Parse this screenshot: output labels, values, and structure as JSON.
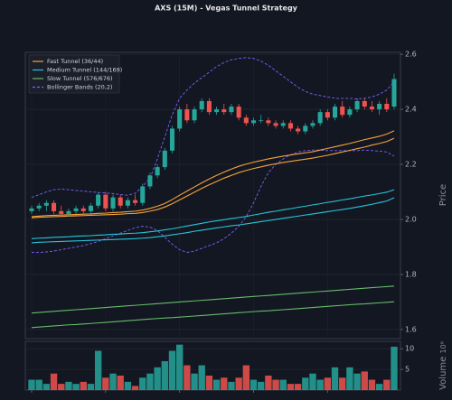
{
  "chart_data": {
    "type": "candlestick",
    "title": "AXS (15M) - Vegas Tunnel Strategy",
    "y_label": "Price",
    "ylim": [
      1.567,
      2.607
    ],
    "yticks": [
      {
        "value": 1.6,
        "label": "1.6"
      },
      {
        "value": 1.8,
        "label": "1.8"
      },
      {
        "value": 2.0,
        "label": "2.0"
      },
      {
        "value": 2.2,
        "label": "2.2"
      },
      {
        "value": 2.4,
        "label": "2.4"
      },
      {
        "value": 2.6,
        "label": "2.6"
      }
    ],
    "grid": true,
    "legend": "upper left",
    "up_color": "#26a69a",
    "down_color": "#ef5350",
    "open": [
      2.03,
      2.04,
      2.05,
      2.06,
      2.03,
      2.02,
      2.03,
      2.04,
      2.03,
      2.05,
      2.09,
      2.04,
      2.08,
      2.05,
      2.07,
      2.06,
      2.12,
      2.16,
      2.19,
      2.25,
      2.33,
      2.4,
      2.36,
      2.4,
      2.43,
      2.39,
      2.4,
      2.39,
      2.41,
      2.37,
      2.35,
      2.36,
      2.36,
      2.35,
      2.34,
      2.35,
      2.33,
      2.32,
      2.34,
      2.35,
      2.39,
      2.37,
      2.41,
      2.38,
      2.4,
      2.43,
      2.41,
      2.4,
      2.42,
      2.41
    ],
    "high": [
      2.05,
      2.06,
      2.07,
      2.07,
      2.05,
      2.04,
      2.05,
      2.05,
      2.06,
      2.1,
      2.1,
      2.09,
      2.09,
      2.08,
      2.09,
      2.13,
      2.17,
      2.2,
      2.26,
      2.34,
      2.41,
      2.42,
      2.41,
      2.44,
      2.44,
      2.41,
      2.42,
      2.42,
      2.42,
      2.38,
      2.37,
      2.38,
      2.37,
      2.36,
      2.36,
      2.36,
      2.34,
      2.35,
      2.36,
      2.4,
      2.4,
      2.42,
      2.43,
      2.41,
      2.44,
      2.44,
      2.43,
      2.43,
      2.44,
      2.53
    ],
    "low": [
      2.02,
      2.03,
      2.03,
      2.02,
      2.01,
      2.01,
      2.02,
      2.02,
      2.02,
      2.04,
      2.03,
      2.03,
      2.04,
      2.04,
      2.05,
      2.05,
      2.11,
      2.15,
      2.18,
      2.24,
      2.32,
      2.35,
      2.35,
      2.39,
      2.38,
      2.38,
      2.38,
      2.38,
      2.36,
      2.34,
      2.34,
      2.35,
      2.34,
      2.33,
      2.33,
      2.32,
      2.31,
      2.31,
      2.33,
      2.34,
      2.36,
      2.36,
      2.37,
      2.37,
      2.39,
      2.4,
      2.39,
      2.38,
      2.39,
      2.4
    ],
    "close": [
      2.04,
      2.05,
      2.06,
      2.03,
      2.02,
      2.03,
      2.04,
      2.03,
      2.05,
      2.09,
      2.04,
      2.08,
      2.05,
      2.07,
      2.06,
      2.12,
      2.16,
      2.19,
      2.25,
      2.33,
      2.4,
      2.36,
      2.4,
      2.43,
      2.39,
      2.4,
      2.39,
      2.41,
      2.37,
      2.35,
      2.36,
      2.36,
      2.35,
      2.34,
      2.35,
      2.33,
      2.32,
      2.34,
      2.35,
      2.39,
      2.37,
      2.41,
      2.38,
      2.4,
      2.43,
      2.41,
      2.4,
      2.42,
      2.4,
      2.51
    ],
    "tunnels": [
      {
        "name": "Fast Tunnel (36/44)",
        "color": "#f5a33b",
        "upper": [
          2.01,
          2.012,
          2.014,
          2.015,
          2.016,
          2.017,
          2.018,
          2.019,
          2.02,
          2.022,
          2.023,
          2.025,
          2.026,
          2.028,
          2.03,
          2.034,
          2.04,
          2.048,
          2.058,
          2.072,
          2.088,
          2.103,
          2.118,
          2.133,
          2.147,
          2.16,
          2.172,
          2.183,
          2.193,
          2.201,
          2.208,
          2.214,
          2.22,
          2.225,
          2.23,
          2.234,
          2.238,
          2.242,
          2.246,
          2.252,
          2.258,
          2.264,
          2.27,
          2.276,
          2.283,
          2.29,
          2.296,
          2.302,
          2.31,
          2.322
        ],
        "lower": [
          2.006,
          2.008,
          2.009,
          2.01,
          2.011,
          2.012,
          2.013,
          2.014,
          2.015,
          2.016,
          2.017,
          2.018,
          2.019,
          2.021,
          2.022,
          2.025,
          2.03,
          2.036,
          2.045,
          2.057,
          2.071,
          2.085,
          2.099,
          2.113,
          2.126,
          2.138,
          2.15,
          2.16,
          2.17,
          2.178,
          2.185,
          2.191,
          2.197,
          2.202,
          2.207,
          2.211,
          2.215,
          2.219,
          2.223,
          2.228,
          2.233,
          2.239,
          2.245,
          2.251,
          2.257,
          2.263,
          2.27,
          2.276,
          2.283,
          2.295
        ]
      },
      {
        "name": "Medium Tunnel (144/169)",
        "color": "#26c6da",
        "upper": [
          1.93,
          1.932,
          1.933,
          1.935,
          1.936,
          1.937,
          1.939,
          1.94,
          1.941,
          1.943,
          1.944,
          1.946,
          1.947,
          1.949,
          1.95,
          1.952,
          1.955,
          1.958,
          1.962,
          1.966,
          1.971,
          1.976,
          1.981,
          1.986,
          1.991,
          1.995,
          1.999,
          2.003,
          2.007,
          2.011,
          2.016,
          2.021,
          2.026,
          2.03,
          2.035,
          2.039,
          2.044,
          2.048,
          2.053,
          2.057,
          2.062,
          2.066,
          2.071,
          2.075,
          2.08,
          2.085,
          2.089,
          2.094,
          2.099,
          2.108
        ],
        "lower": [
          1.915,
          1.917,
          1.918,
          1.919,
          1.92,
          1.921,
          1.922,
          1.923,
          1.924,
          1.925,
          1.926,
          1.927,
          1.928,
          1.929,
          1.93,
          1.932,
          1.934,
          1.937,
          1.94,
          1.944,
          1.948,
          1.952,
          1.957,
          1.961,
          1.965,
          1.969,
          1.973,
          1.977,
          1.98,
          1.984,
          1.988,
          1.992,
          1.996,
          2.0,
          2.004,
          2.008,
          2.012,
          2.016,
          2.02,
          2.024,
          2.028,
          2.032,
          2.036,
          2.04,
          2.045,
          2.05,
          2.055,
          2.061,
          2.067,
          2.079
        ]
      },
      {
        "name": "Slow Tunnel (576/676)",
        "color": "#66bb6a",
        "upper": [
          1.66,
          1.662,
          1.664,
          1.666,
          1.668,
          1.67,
          1.672,
          1.674,
          1.676,
          1.678,
          1.68,
          1.682,
          1.684,
          1.686,
          1.688,
          1.69,
          1.692,
          1.694,
          1.696,
          1.698,
          1.7,
          1.702,
          1.704,
          1.706,
          1.708,
          1.71,
          1.712,
          1.714,
          1.716,
          1.718,
          1.72,
          1.722,
          1.724,
          1.726,
          1.728,
          1.73,
          1.732,
          1.734,
          1.736,
          1.738,
          1.74,
          1.742,
          1.744,
          1.746,
          1.748,
          1.75,
          1.752,
          1.754,
          1.756,
          1.758
        ],
        "lower": [
          1.607,
          1.609,
          1.611,
          1.613,
          1.615,
          1.617,
          1.618,
          1.62,
          1.622,
          1.624,
          1.626,
          1.628,
          1.63,
          1.632,
          1.634,
          1.636,
          1.638,
          1.64,
          1.642,
          1.643,
          1.645,
          1.647,
          1.649,
          1.651,
          1.653,
          1.655,
          1.657,
          1.659,
          1.661,
          1.663,
          1.665,
          1.667,
          1.668,
          1.67,
          1.672,
          1.674,
          1.676,
          1.678,
          1.68,
          1.682,
          1.684,
          1.686,
          1.688,
          1.69,
          1.692,
          1.693,
          1.695,
          1.697,
          1.699,
          1.701
        ]
      }
    ],
    "bollinger": {
      "name": "Bollinger Bands (20,2)",
      "color": "#7b61ff",
      "upper": [
        2.08,
        2.09,
        2.1,
        2.108,
        2.11,
        2.108,
        2.105,
        2.103,
        2.1,
        2.098,
        2.096,
        2.094,
        2.09,
        2.088,
        2.095,
        2.12,
        2.15,
        2.22,
        2.3,
        2.38,
        2.44,
        2.47,
        2.495,
        2.515,
        2.535,
        2.555,
        2.57,
        2.58,
        2.585,
        2.588,
        2.585,
        2.575,
        2.56,
        2.54,
        2.52,
        2.5,
        2.48,
        2.465,
        2.455,
        2.45,
        2.445,
        2.44,
        2.44,
        2.44,
        2.438,
        2.44,
        2.445,
        2.455,
        2.47,
        2.5
      ],
      "lower": [
        1.88,
        1.88,
        1.882,
        1.885,
        1.89,
        1.895,
        1.9,
        1.905,
        1.912,
        1.92,
        1.93,
        1.94,
        1.95,
        1.96,
        1.97,
        1.975,
        1.972,
        1.96,
        1.935,
        1.91,
        1.89,
        1.88,
        1.885,
        1.895,
        1.905,
        1.915,
        1.93,
        1.95,
        1.975,
        2.01,
        2.06,
        2.12,
        2.17,
        2.2,
        2.22,
        2.235,
        2.245,
        2.25,
        2.252,
        2.252,
        2.25,
        2.25,
        2.25,
        2.25,
        2.25,
        2.252,
        2.25,
        2.248,
        2.245,
        2.23
      ]
    },
    "volume": [
      2.5,
      2.5,
      1.5,
      4,
      1.5,
      2,
      1.5,
      2,
      1.5,
      9.5,
      3,
      4,
      3.5,
      2,
      1,
      3,
      4,
      5.5,
      7,
      9.5,
      11,
      6,
      4,
      6,
      3.5,
      2.5,
      3,
      2,
      3,
      6,
      2.5,
      2,
      3.5,
      2.5,
      2.5,
      1.5,
      1.5,
      3,
      4,
      2.5,
      3,
      5.5,
      3,
      5.5,
      4,
      4.5,
      2.5,
      1.5,
      2.5,
      10.5
    ],
    "volume_label": "Volume",
    "volume_exponent": "10⁶",
    "volume_ylim": [
      0,
      11.8
    ],
    "volume_yticks": [
      5,
      10
    ]
  }
}
